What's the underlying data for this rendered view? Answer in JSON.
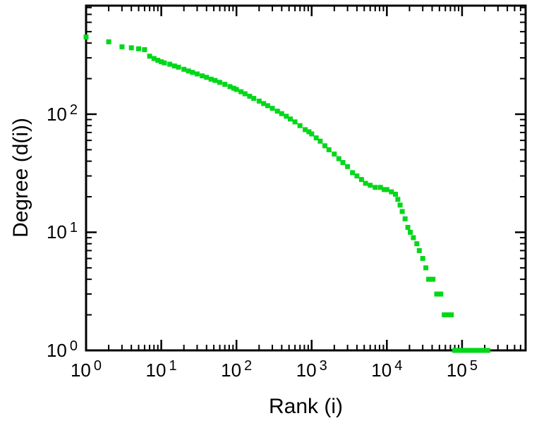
{
  "chart_data": {
    "type": "scatter",
    "title": "",
    "xlabel": "Rank (i)",
    "ylabel": "Degree (d(i))",
    "xscale": "log",
    "yscale": "log",
    "xlim": [
      1,
      700000
    ],
    "ylim": [
      1,
      830
    ],
    "grid": false,
    "legend": "none",
    "tick_base": "10",
    "x_tick_exponents": [
      0,
      1,
      2,
      3,
      4,
      5
    ],
    "y_tick_exponents": [
      0,
      1,
      2
    ],
    "marker": "square",
    "marker_color": "#00d718",
    "frame_color": "#000000",
    "points": [
      [
        1,
        450
      ],
      [
        2,
        410
      ],
      [
        3,
        372
      ],
      [
        4,
        365
      ],
      [
        5,
        358
      ],
      [
        6,
        352
      ],
      [
        7,
        310
      ],
      [
        8,
        296
      ],
      [
        9,
        286
      ],
      [
        10,
        278
      ],
      [
        11,
        272
      ],
      [
        13,
        265
      ],
      [
        15,
        256
      ],
      [
        17,
        250
      ],
      [
        20,
        240
      ],
      [
        23,
        232
      ],
      [
        26,
        226
      ],
      [
        30,
        219
      ],
      [
        35,
        211
      ],
      [
        40,
        205
      ],
      [
        46,
        198
      ],
      [
        52,
        193
      ],
      [
        60,
        186
      ],
      [
        70,
        179
      ],
      [
        82,
        171
      ],
      [
        92,
        166
      ],
      [
        100,
        162
      ],
      [
        115,
        155
      ],
      [
        130,
        149
      ],
      [
        150,
        142
      ],
      [
        170,
        136
      ],
      [
        200,
        129
      ],
      [
        230,
        123
      ],
      [
        260,
        118
      ],
      [
        300,
        112
      ],
      [
        350,
        106
      ],
      [
        400,
        101
      ],
      [
        460,
        96
      ],
      [
        520,
        91
      ],
      [
        600,
        86
      ],
      [
        700,
        80
      ],
      [
        820,
        74
      ],
      [
        920,
        71
      ],
      [
        1000,
        68
      ],
      [
        1150,
        63
      ],
      [
        1300,
        59
      ],
      [
        1500,
        54
      ],
      [
        1700,
        50
      ],
      [
        2000,
        46
      ],
      [
        2300,
        42
      ],
      [
        2600,
        39
      ],
      [
        3000,
        36
      ],
      [
        3500,
        32
      ],
      [
        4000,
        30
      ],
      [
        4600,
        28
      ],
      [
        5200,
        26
      ],
      [
        6000,
        25
      ],
      [
        7000,
        24
      ],
      [
        8200,
        24
      ],
      [
        9200,
        23
      ],
      [
        10000,
        23
      ],
      [
        11500,
        22
      ],
      [
        13000,
        21
      ],
      [
        14000,
        19
      ],
      [
        15000,
        17
      ],
      [
        16000,
        15
      ],
      [
        17500,
        13
      ],
      [
        19000,
        11
      ],
      [
        20500,
        10
      ],
      [
        22500,
        9
      ],
      [
        25000,
        8
      ],
      [
        27000,
        7
      ],
      [
        30000,
        6
      ],
      [
        33000,
        5
      ],
      [
        36000,
        4
      ],
      [
        41000,
        4
      ],
      [
        46000,
        3
      ],
      [
        52000,
        3
      ],
      [
        58000,
        2
      ],
      [
        65000,
        2
      ],
      [
        72000,
        2
      ],
      [
        80000,
        1
      ],
      [
        90000,
        1
      ],
      [
        100000,
        1
      ],
      [
        115000,
        1
      ],
      [
        130000,
        1
      ],
      [
        150000,
        1
      ],
      [
        170000,
        1
      ],
      [
        195000,
        1
      ],
      [
        220000,
        1
      ]
    ]
  }
}
